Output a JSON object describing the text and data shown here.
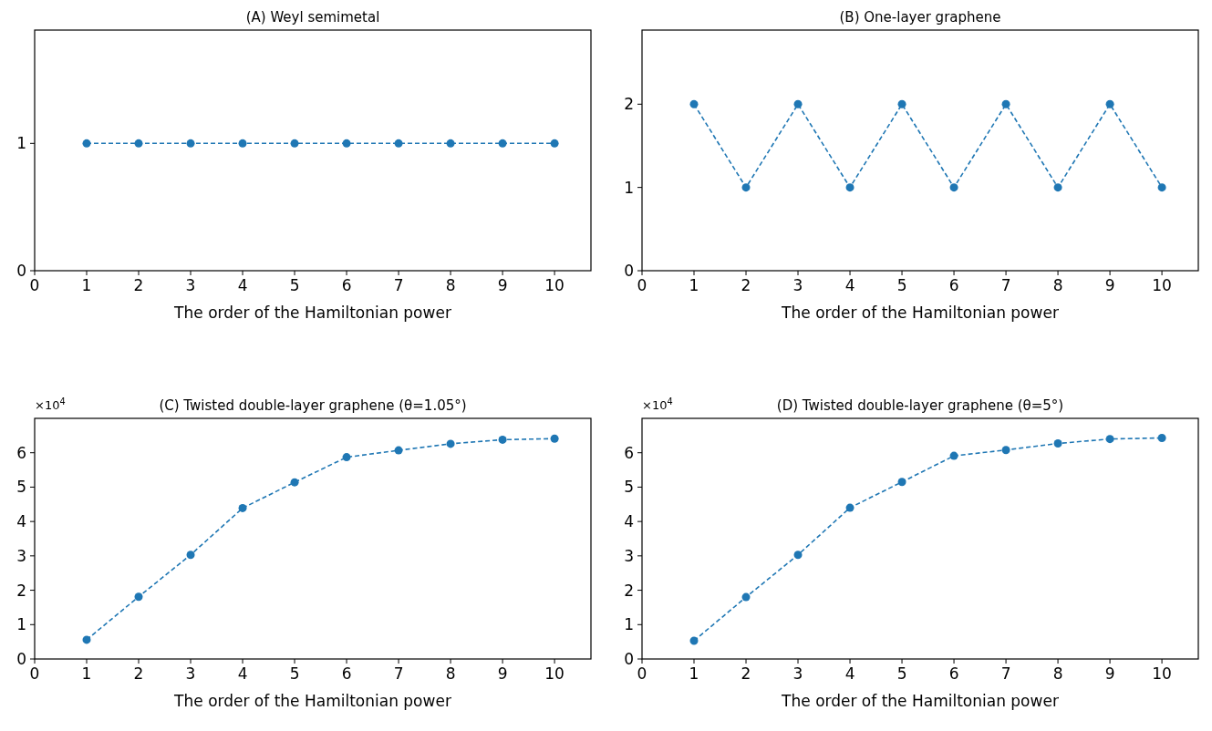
{
  "chart_data": [
    {
      "type": "line",
      "title": "(A) Weyl semimetal",
      "xlabel": "The order of the Hamiltonian power",
      "x": [
        1,
        2,
        3,
        4,
        5,
        6,
        7,
        8,
        9,
        10
      ],
      "series": [
        {
          "color": "#1f77b4",
          "values": [
            1,
            1,
            1,
            1,
            1,
            1,
            1,
            1,
            1,
            1
          ]
        }
      ],
      "xlim": [
        0,
        10.7
      ],
      "xticks": [
        0,
        1,
        2,
        3,
        4,
        5,
        6,
        7,
        8,
        9,
        10
      ],
      "ylim": [
        0,
        1.89
      ],
      "yticks": [
        0,
        1
      ],
      "marker": "circle",
      "line_style": "dashed"
    },
    {
      "type": "line",
      "title": "(B) One-layer graphene",
      "xlabel": "The order of the Hamiltonian power",
      "x": [
        1,
        2,
        3,
        4,
        5,
        6,
        7,
        8,
        9,
        10
      ],
      "series": [
        {
          "color": "#1f77b4",
          "values": [
            2,
            1,
            2,
            1,
            2,
            1,
            2,
            1,
            2,
            1
          ]
        }
      ],
      "xlim": [
        0,
        10.7
      ],
      "xticks": [
        0,
        1,
        2,
        3,
        4,
        5,
        6,
        7,
        8,
        9,
        10
      ],
      "ylim": [
        0,
        2.89
      ],
      "yticks": [
        0,
        1,
        2
      ],
      "marker": "circle",
      "line_style": "dashed"
    },
    {
      "type": "line",
      "title": "(C) Twisted double-layer graphene (θ=1.05°)",
      "xlabel": "The order of the Hamiltonian power",
      "annotations": [
        "×10$^{4}$"
      ],
      "x": [
        1,
        2,
        3,
        4,
        5,
        6,
        7,
        8,
        9,
        10
      ],
      "series": [
        {
          "color": "#1f77b4",
          "values": [
            0.56,
            1.81,
            3.03,
            4.39,
            5.14,
            5.87,
            6.07,
            6.26,
            6.38,
            6.41
          ]
        }
      ],
      "xlim": [
        0,
        10.7
      ],
      "xticks": [
        0,
        1,
        2,
        3,
        4,
        5,
        6,
        7,
        8,
        9,
        10
      ],
      "ylim": [
        0,
        7
      ],
      "yticks": [
        0,
        1,
        2,
        3,
        4,
        5,
        6
      ],
      "marker": "circle",
      "line_style": "dashed"
    },
    {
      "type": "line",
      "title": "(D) Twisted double-layer graphene (θ=5°)",
      "xlabel": "The order of the Hamiltonian power",
      "annotations": [
        "×10$^{4}$"
      ],
      "x": [
        1,
        2,
        3,
        4,
        5,
        6,
        7,
        8,
        9,
        10
      ],
      "series": [
        {
          "color": "#1f77b4",
          "values": [
            0.53,
            1.8,
            3.03,
            4.4,
            5.15,
            5.91,
            6.08,
            6.27,
            6.4,
            6.43
          ]
        }
      ],
      "xlim": [
        0,
        10.7
      ],
      "xticks": [
        0,
        1,
        2,
        3,
        4,
        5,
        6,
        7,
        8,
        9,
        10
      ],
      "ylim": [
        0,
        7
      ],
      "yticks": [
        0,
        1,
        2,
        3,
        4,
        5,
        6
      ],
      "marker": "circle",
      "line_style": "dashed"
    }
  ]
}
